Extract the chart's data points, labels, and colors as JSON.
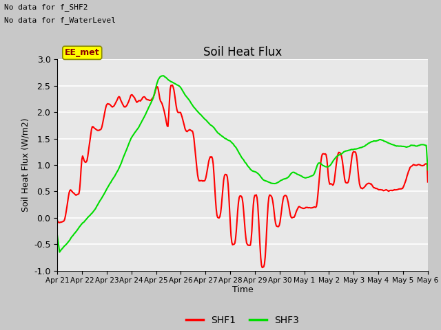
{
  "title": "Soil Heat Flux",
  "ylabel": "Soil Heat Flux (W/m2)",
  "xlabel": "Time",
  "ylim": [
    -1.0,
    3.0
  ],
  "yticks": [
    -1.0,
    -0.5,
    0.0,
    0.5,
    1.0,
    1.5,
    2.0,
    2.5,
    3.0
  ],
  "xtick_labels": [
    "Apr 21",
    "Apr 22",
    "Apr 23",
    "Apr 24",
    "Apr 25",
    "Apr 26",
    "Apr 27",
    "Apr 28",
    "Apr 29",
    "Apr 30",
    "May 1",
    "May 2",
    "May 3",
    "May 4",
    "May 5",
    "May 6"
  ],
  "annotations": [
    "No data for f_SHF2",
    "No data for f_WaterLevel"
  ],
  "legend_box_label": "EE_met",
  "fig_bg_color": "#c8c8c8",
  "plot_bg_color": "#e8e8e8",
  "grid_color": "#ffffff",
  "shf1_color": "#ff0000",
  "shf3_color": "#00dd00",
  "line_width": 1.5,
  "n_points": 500
}
